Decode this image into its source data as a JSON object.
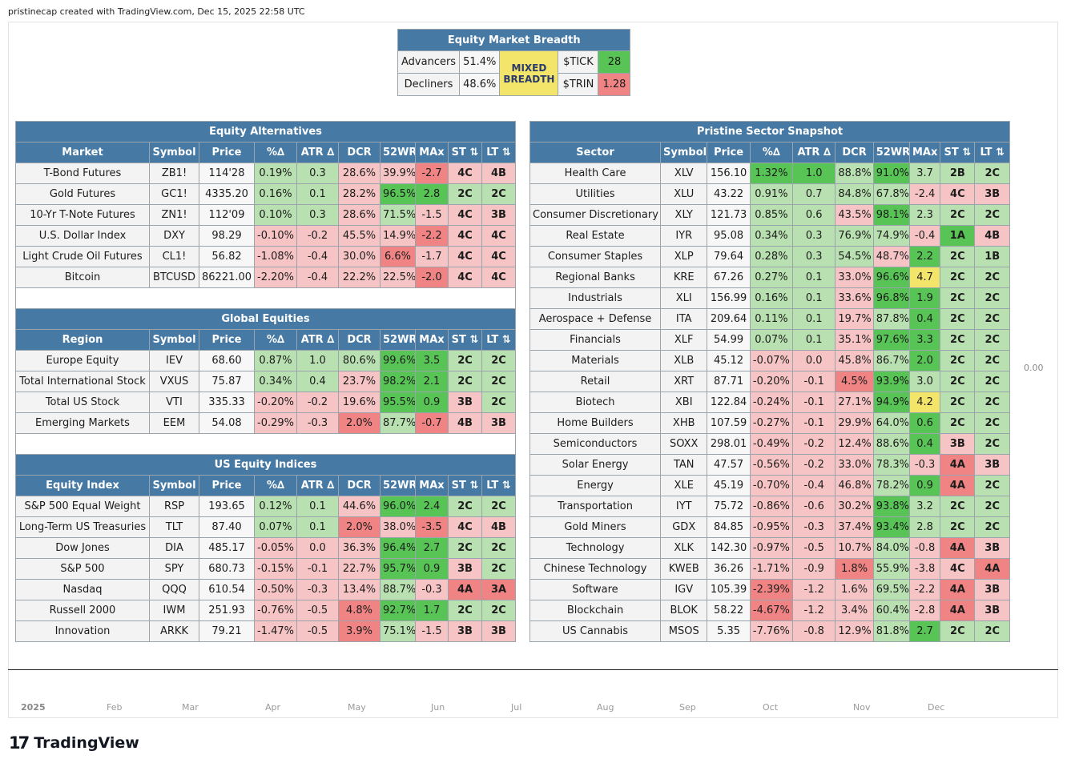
{
  "credit": "pristinecap created with TradingView.com, Dec 15, 2025 22:58 UTC",
  "axis_value": "0.00",
  "months": [
    "2025",
    "Feb",
    "Mar",
    "Apr",
    "May",
    "Jun",
    "Jul",
    "Aug",
    "Sep",
    "Oct",
    "Nov",
    "Dec"
  ],
  "logo": {
    "mark": "17",
    "name": "TradingView"
  },
  "breadth": {
    "title": "Equity Market Breadth",
    "advancers_label": "Advancers",
    "advancers_value": "51.4%",
    "decliners_label": "Decliners",
    "decliners_value": "48.6%",
    "status": "MIXED BREADTH",
    "tick_label": "$TICK",
    "tick_value": "28",
    "trin_label": "$TRIN",
    "trin_value": "1.28"
  },
  "left_tables": [
    {
      "title": "Equity Alternatives",
      "headers": [
        "Market",
        "Symbol",
        "Price",
        "%∆",
        "ATR ∆",
        "DCR",
        "52WR",
        "MAx",
        "ST ⇅",
        "LT ⇅"
      ],
      "rows": [
        {
          "cells": [
            "T-Bond Futures",
            "ZB1!",
            "114'28",
            "0.19%",
            "0.3",
            "28.6%",
            "39.9%",
            "-2.7",
            "4C",
            "4B"
          ],
          "colors": [
            "n",
            "n",
            "n",
            "g1",
            "g1",
            "r1",
            "r1",
            "r2",
            "r1",
            "r1"
          ]
        },
        {
          "cells": [
            "Gold Futures",
            "GC1!",
            "4335.20",
            "0.16%",
            "0.1",
            "28.2%",
            "96.5%",
            "2.8",
            "2C",
            "2C"
          ],
          "colors": [
            "n",
            "n",
            "n",
            "g1",
            "g1",
            "r1",
            "g2",
            "g2",
            "g1",
            "g1"
          ]
        },
        {
          "cells": [
            "10-Yr T-Note Futures",
            "ZN1!",
            "112'09",
            "0.10%",
            "0.3",
            "28.6%",
            "71.5%",
            "-1.5",
            "4C",
            "3B"
          ],
          "colors": [
            "n",
            "n",
            "n",
            "g1",
            "g1",
            "r1",
            "g1",
            "r1",
            "r1",
            "r1"
          ]
        },
        {
          "cells": [
            "U.S. Dollar Index",
            "DXY",
            "98.29",
            "-0.10%",
            "-0.2",
            "45.5%",
            "14.9%",
            "-2.2",
            "4C",
            "4C"
          ],
          "colors": [
            "n",
            "n",
            "n",
            "r1",
            "r1",
            "r1",
            "r1",
            "r2",
            "r1",
            "r1"
          ]
        },
        {
          "cells": [
            "Light Crude Oil Futures",
            "CL1!",
            "56.82",
            "-1.08%",
            "-0.4",
            "30.0%",
            "6.6%",
            "-1.7",
            "4C",
            "4C"
          ],
          "colors": [
            "n",
            "n",
            "n",
            "r1",
            "r1",
            "r1",
            "r2",
            "r1",
            "r1",
            "r1"
          ]
        },
        {
          "cells": [
            "Bitcoin",
            "BTCUSD",
            "86221.00",
            "-2.20%",
            "-0.4",
            "22.2%",
            "22.5%",
            "-2.0",
            "4C",
            "4C"
          ],
          "colors": [
            "n",
            "n",
            "n",
            "r1",
            "r1",
            "r1",
            "r1",
            "r2",
            "r1",
            "r1"
          ]
        }
      ]
    },
    {
      "title": "Global Equities",
      "headers": [
        "Region",
        "Symbol",
        "Price",
        "%∆",
        "ATR ∆",
        "DCR",
        "52WR",
        "MAx",
        "ST ⇅",
        "LT ⇅"
      ],
      "rows": [
        {
          "cells": [
            "Europe Equity",
            "IEV",
            "68.60",
            "0.87%",
            "1.0",
            "80.6%",
            "99.6%",
            "3.5",
            "2C",
            "2C"
          ],
          "colors": [
            "n",
            "n",
            "n",
            "g1",
            "g1",
            "g1",
            "g2",
            "g2",
            "g1",
            "g1"
          ]
        },
        {
          "cells": [
            "Total International Stock",
            "VXUS",
            "75.87",
            "0.34%",
            "0.4",
            "23.7%",
            "98.2%",
            "2.1",
            "2C",
            "2C"
          ],
          "colors": [
            "n",
            "n",
            "n",
            "g1",
            "g1",
            "r1",
            "g2",
            "g2",
            "g1",
            "g1"
          ]
        },
        {
          "cells": [
            "Total US Stock",
            "VTI",
            "335.33",
            "-0.20%",
            "-0.2",
            "19.6%",
            "95.5%",
            "0.9",
            "3B",
            "2C"
          ],
          "colors": [
            "n",
            "n",
            "n",
            "r1",
            "r1",
            "r1",
            "g2",
            "g2",
            "r1",
            "g1"
          ]
        },
        {
          "cells": [
            "Emerging Markets",
            "EEM",
            "54.08",
            "-0.29%",
            "-0.3",
            "2.0%",
            "87.7%",
            "-0.7",
            "4B",
            "3B"
          ],
          "colors": [
            "n",
            "n",
            "n",
            "r1",
            "r1",
            "r2",
            "g1",
            "r2",
            "r1",
            "r1"
          ]
        }
      ]
    },
    {
      "title": "US Equity Indices",
      "headers": [
        "Equity Index",
        "Symbol",
        "Price",
        "%∆",
        "ATR ∆",
        "DCR",
        "52WR",
        "MAx",
        "ST ⇅",
        "LT ⇅"
      ],
      "rows": [
        {
          "cells": [
            "S&P 500 Equal Weight",
            "RSP",
            "193.65",
            "0.12%",
            "0.1",
            "44.6%",
            "96.0%",
            "2.4",
            "2C",
            "2C"
          ],
          "colors": [
            "n",
            "n",
            "n",
            "g1",
            "g1",
            "r1",
            "g2",
            "g2",
            "g1",
            "g1"
          ]
        },
        {
          "cells": [
            "Long-Term US Treasuries",
            "TLT",
            "87.40",
            "0.07%",
            "0.1",
            "2.0%",
            "38.0%",
            "-3.5",
            "4C",
            "4B"
          ],
          "colors": [
            "n",
            "n",
            "n",
            "g1",
            "g1",
            "r2",
            "r1",
            "r2",
            "r1",
            "r1"
          ]
        },
        {
          "cells": [
            "Dow Jones",
            "DIA",
            "485.17",
            "-0.05%",
            "0.0",
            "36.3%",
            "96.4%",
            "2.7",
            "2C",
            "2C"
          ],
          "colors": [
            "n",
            "n",
            "n",
            "r1",
            "r1",
            "r1",
            "g2",
            "g2",
            "g1",
            "g1"
          ]
        },
        {
          "cells": [
            "S&P 500",
            "SPY",
            "680.73",
            "-0.15%",
            "-0.1",
            "22.7%",
            "95.7%",
            "0.9",
            "3B",
            "2C"
          ],
          "colors": [
            "n",
            "n",
            "n",
            "r1",
            "r1",
            "r1",
            "g2",
            "g2",
            "r1",
            "g1"
          ]
        },
        {
          "cells": [
            "Nasdaq",
            "QQQ",
            "610.54",
            "-0.50%",
            "-0.3",
            "13.4%",
            "88.7%",
            "-0.3",
            "4A",
            "3A"
          ],
          "colors": [
            "n",
            "n",
            "n",
            "r1",
            "r1",
            "r1",
            "g1",
            "r1",
            "r2",
            "r2"
          ]
        },
        {
          "cells": [
            "Russell 2000",
            "IWM",
            "251.93",
            "-0.76%",
            "-0.5",
            "4.8%",
            "92.7%",
            "1.7",
            "2C",
            "2C"
          ],
          "colors": [
            "n",
            "n",
            "n",
            "r1",
            "r1",
            "r2",
            "g2",
            "g2",
            "g1",
            "g1"
          ]
        },
        {
          "cells": [
            "Innovation",
            "ARKK",
            "79.21",
            "-1.47%",
            "-0.5",
            "3.9%",
            "75.1%",
            "-1.5",
            "3B",
            "3B"
          ],
          "colors": [
            "n",
            "n",
            "n",
            "r1",
            "r1",
            "r2",
            "g1",
            "r1",
            "r1",
            "r1"
          ]
        }
      ]
    }
  ],
  "sector_table": {
    "title": "Pristine Sector Snapshot",
    "headers": [
      "Sector",
      "Symbol",
      "Price",
      "%∆",
      "ATR ∆",
      "DCR",
      "52WR",
      "MAx",
      "ST ⇅",
      "LT ⇅"
    ],
    "rows": [
      {
        "cells": [
          "Health Care",
          "XLV",
          "156.10",
          "1.32%",
          "1.0",
          "88.8%",
          "91.0%",
          "3.7",
          "2B",
          "2C"
        ],
        "colors": [
          "n",
          "n",
          "n",
          "g2",
          "g2",
          "g1",
          "g2",
          "g1",
          "g1",
          "g1"
        ]
      },
      {
        "cells": [
          "Utilities",
          "XLU",
          "43.22",
          "0.91%",
          "0.7",
          "84.8%",
          "67.8%",
          "-2.4",
          "4C",
          "3B"
        ],
        "colors": [
          "n",
          "n",
          "n",
          "g1",
          "g1",
          "g1",
          "g1",
          "r1",
          "r1",
          "r1"
        ]
      },
      {
        "cells": [
          "Consumer Discretionary",
          "XLY",
          "121.73",
          "0.85%",
          "0.6",
          "43.5%",
          "98.1%",
          "2.3",
          "2C",
          "2C"
        ],
        "colors": [
          "n",
          "n",
          "n",
          "g1",
          "g1",
          "r1",
          "g2",
          "g1",
          "g1",
          "g1"
        ]
      },
      {
        "cells": [
          "Real Estate",
          "IYR",
          "95.08",
          "0.34%",
          "0.3",
          "76.9%",
          "74.9%",
          "-0.4",
          "1A",
          "4B"
        ],
        "colors": [
          "n",
          "n",
          "n",
          "g1",
          "g1",
          "g1",
          "g1",
          "r1",
          "g2",
          "r1"
        ]
      },
      {
        "cells": [
          "Consumer Staples",
          "XLP",
          "79.64",
          "0.28%",
          "0.3",
          "54.5%",
          "48.7%",
          "2.2",
          "2C",
          "1B"
        ],
        "colors": [
          "n",
          "n",
          "n",
          "g1",
          "g1",
          "g1",
          "r1",
          "g2",
          "g1",
          "g1"
        ]
      },
      {
        "cells": [
          "Regional Banks",
          "KRE",
          "67.26",
          "0.27%",
          "0.1",
          "33.0%",
          "96.6%",
          "4.7",
          "2C",
          "2C"
        ],
        "colors": [
          "n",
          "n",
          "n",
          "g1",
          "g1",
          "r1",
          "g2",
          "y1",
          "g1",
          "g1"
        ]
      },
      {
        "cells": [
          "Industrials",
          "XLI",
          "156.99",
          "0.16%",
          "0.1",
          "33.6%",
          "96.8%",
          "1.9",
          "2C",
          "2C"
        ],
        "colors": [
          "n",
          "n",
          "n",
          "g1",
          "g1",
          "r1",
          "g2",
          "g2",
          "g1",
          "g1"
        ]
      },
      {
        "cells": [
          "Aerospace + Defense",
          "ITA",
          "209.64",
          "0.11%",
          "0.1",
          "19.7%",
          "87.8%",
          "0.4",
          "2C",
          "2C"
        ],
        "colors": [
          "n",
          "n",
          "n",
          "g1",
          "g1",
          "r1",
          "g1",
          "g2",
          "g1",
          "g1"
        ]
      },
      {
        "cells": [
          "Financials",
          "XLF",
          "54.99",
          "0.07%",
          "0.1",
          "35.1%",
          "97.6%",
          "3.3",
          "2C",
          "2C"
        ],
        "colors": [
          "n",
          "n",
          "n",
          "g1",
          "g1",
          "r1",
          "g2",
          "g2",
          "g1",
          "g1"
        ]
      },
      {
        "cells": [
          "Materials",
          "XLB",
          "45.12",
          "-0.07%",
          "0.0",
          "45.8%",
          "86.7%",
          "2.0",
          "2C",
          "2C"
        ],
        "colors": [
          "n",
          "n",
          "n",
          "r1",
          "r1",
          "r1",
          "g1",
          "g2",
          "g1",
          "g1"
        ]
      },
      {
        "cells": [
          "Retail",
          "XRT",
          "87.71",
          "-0.20%",
          "-0.1",
          "4.5%",
          "93.9%",
          "3.0",
          "2C",
          "2C"
        ],
        "colors": [
          "n",
          "n",
          "n",
          "r1",
          "r1",
          "r2",
          "g2",
          "g1",
          "g1",
          "g1"
        ]
      },
      {
        "cells": [
          "Biotech",
          "XBI",
          "122.84",
          "-0.24%",
          "-0.1",
          "27.1%",
          "94.9%",
          "4.2",
          "2C",
          "2C"
        ],
        "colors": [
          "n",
          "n",
          "n",
          "r1",
          "r1",
          "r1",
          "g2",
          "y1",
          "g1",
          "g1"
        ]
      },
      {
        "cells": [
          "Home Builders",
          "XHB",
          "107.59",
          "-0.27%",
          "-0.1",
          "29.9%",
          "64.0%",
          "0.6",
          "2C",
          "2C"
        ],
        "colors": [
          "n",
          "n",
          "n",
          "r1",
          "r1",
          "r1",
          "g1",
          "g2",
          "g1",
          "g1"
        ]
      },
      {
        "cells": [
          "Semiconductors",
          "SOXX",
          "298.01",
          "-0.49%",
          "-0.2",
          "12.4%",
          "88.6%",
          "0.4",
          "3B",
          "2C"
        ],
        "colors": [
          "n",
          "n",
          "n",
          "r1",
          "r1",
          "r1",
          "g1",
          "g2",
          "r1",
          "g1"
        ]
      },
      {
        "cells": [
          "Solar Energy",
          "TAN",
          "47.57",
          "-0.56%",
          "-0.2",
          "33.0%",
          "78.3%",
          "-0.3",
          "4A",
          "3B"
        ],
        "colors": [
          "n",
          "n",
          "n",
          "r1",
          "r1",
          "r1",
          "g1",
          "r1",
          "r2",
          "r1"
        ]
      },
      {
        "cells": [
          "Energy",
          "XLE",
          "45.19",
          "-0.70%",
          "-0.4",
          "46.8%",
          "78.2%",
          "0.9",
          "4A",
          "2C"
        ],
        "colors": [
          "n",
          "n",
          "n",
          "r1",
          "r1",
          "r1",
          "g1",
          "g2",
          "r2",
          "g1"
        ]
      },
      {
        "cells": [
          "Transportation",
          "IYT",
          "75.72",
          "-0.86%",
          "-0.6",
          "30.2%",
          "93.8%",
          "3.2",
          "2C",
          "2C"
        ],
        "colors": [
          "n",
          "n",
          "n",
          "r1",
          "r1",
          "r1",
          "g2",
          "g1",
          "g1",
          "g1"
        ]
      },
      {
        "cells": [
          "Gold Miners",
          "GDX",
          "84.85",
          "-0.95%",
          "-0.3",
          "37.4%",
          "93.4%",
          "2.8",
          "2C",
          "2C"
        ],
        "colors": [
          "n",
          "n",
          "n",
          "r1",
          "r1",
          "r1",
          "g2",
          "g1",
          "g1",
          "g1"
        ]
      },
      {
        "cells": [
          "Technology",
          "XLK",
          "142.30",
          "-0.97%",
          "-0.5",
          "10.7%",
          "84.0%",
          "-0.8",
          "4A",
          "3B"
        ],
        "colors": [
          "n",
          "n",
          "n",
          "r1",
          "r1",
          "r1",
          "g1",
          "r1",
          "r2",
          "r1"
        ]
      },
      {
        "cells": [
          "Chinese Technology",
          "KWEB",
          "36.26",
          "-1.71%",
          "-0.9",
          "1.8%",
          "55.9%",
          "-3.8",
          "4C",
          "4A"
        ],
        "colors": [
          "n",
          "n",
          "n",
          "r1",
          "r1",
          "r2",
          "g1",
          "r1",
          "r1",
          "r2"
        ]
      },
      {
        "cells": [
          "Software",
          "IGV",
          "105.39",
          "-2.39%",
          "-1.2",
          "1.6%",
          "69.5%",
          "-2.2",
          "4A",
          "3B"
        ],
        "colors": [
          "n",
          "n",
          "n",
          "r2",
          "r1",
          "r1",
          "g1",
          "r1",
          "r2",
          "r1"
        ]
      },
      {
        "cells": [
          "Blockchain",
          "BLOK",
          "58.22",
          "-4.67%",
          "-1.2",
          "3.4%",
          "60.4%",
          "-2.8",
          "4A",
          "3B"
        ],
        "colors": [
          "n",
          "n",
          "n",
          "r2",
          "r1",
          "r1",
          "g1",
          "r1",
          "r2",
          "r1"
        ]
      },
      {
        "cells": [
          "US Cannabis",
          "MSOS",
          "5.35",
          "-7.76%",
          "-0.8",
          "12.9%",
          "81.8%",
          "2.7",
          "2C",
          "2C"
        ],
        "colors": [
          "n",
          "n",
          "n",
          "r1",
          "r1",
          "r1",
          "g1",
          "g2",
          "g1",
          "g1"
        ]
      }
    ]
  }
}
